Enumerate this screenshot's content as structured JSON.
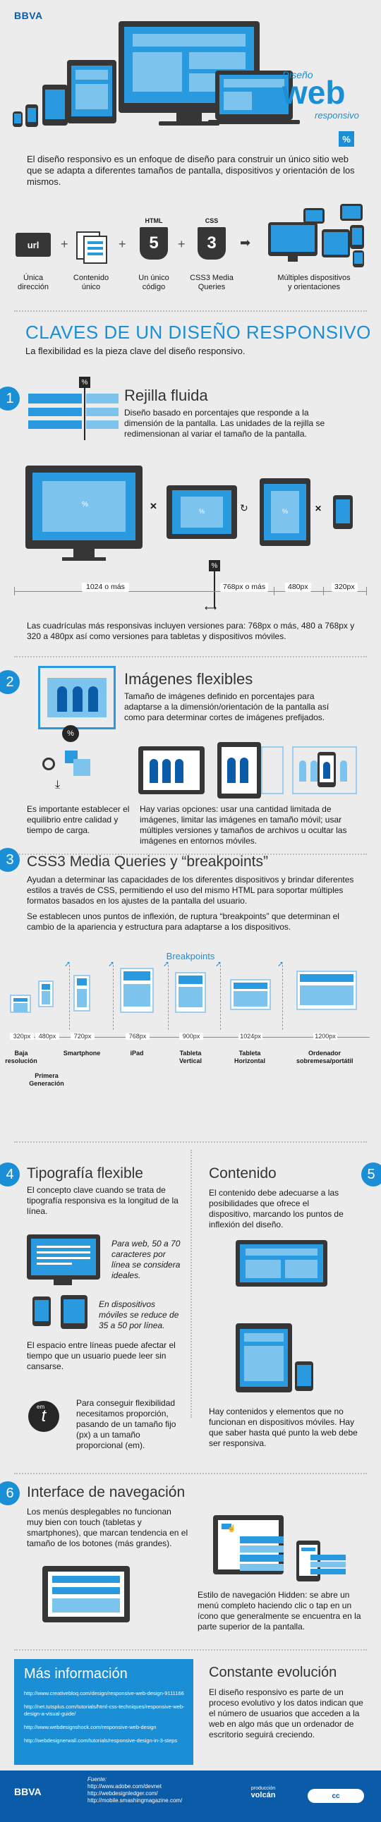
{
  "header": {
    "brand": "BBVA",
    "title_top": "Diseño",
    "title_main": "web",
    "title_sub": "responsivo",
    "percent": "%"
  },
  "intro": {
    "text": "El diseño responsivo es un enfoque de diseño para construir un único sitio web que se adapta a diferentes tamaños de pantalla, dispositivos y orientación de los mismos."
  },
  "equation": {
    "items": [
      {
        "icon": "url",
        "label": "Única\ndirección"
      },
      {
        "label": "Contenido\núnico"
      },
      {
        "top": "HTML",
        "glyph": "5",
        "label": "Un único\ncódigo"
      },
      {
        "top": "CSS",
        "glyph": "3",
        "label": "CSS3 Media\nQueries"
      },
      {
        "label": "Múltiples dispositivos\ny orientaciones"
      }
    ],
    "plus": "+",
    "arrow": "➡"
  },
  "claves": {
    "title": "CLAVES DE UN DISEÑO RESPONSIVO",
    "subtitle": "La flexibilidad es la pieza clave del diseño responsivo."
  },
  "s1": {
    "number": "1",
    "title": "Rejilla fluida",
    "text": "Diseño basado en porcentajes que responde a la dimensión de la pantalla. Las unidades de la rejilla se redimensionan al variar el tamaño de la pantalla.",
    "pct": "%",
    "scale": {
      "a": "1024 o más",
      "b": "768px o más",
      "c": "480px",
      "d": "320px"
    },
    "note": "Las cuadrículas más responsivas incluyen versiones para: 768px o más, 480 a 768px y 320 a 480px así como versiones para tabletas y dispositivos móviles."
  },
  "s2": {
    "number": "2",
    "title": "Imágenes flexibles",
    "text": "Tamaño de imágenes definido en porcentajes para adaptarse a la dimensión/orientación de la pantalla así como para determinar cortes de imágenes prefijados.",
    "left_note": "Es importante establecer el equilibrio entre calidad y tiempo de carga.",
    "right_note": "Hay varias opciones: usar una cantidad limitada de imágenes, limitar las imágenes en tamaño móvil; usar múltiples versiones y tamaños de archivos u ocultar las imágenes en entornos móviles.",
    "pct": "%"
  },
  "s3": {
    "number": "3",
    "title": "CSS3 Media Queries y “breakpoints”",
    "p1": "Ayudan a determinar las capacidades de los diferentes dispositivos y brindar diferentes estilos a través de CSS, permitiendo el uso del mismo HTML para soportar múltiples formatos basados en los ajustes de la pantalla del usuario.",
    "p2": "Se establecen unos puntos de inflexión, de ruptura  “breakpoints” que determinan el cambio de la apariencia y estructura para adaptarse a los dispositivos.",
    "breakpoints_title": "Breakpoints",
    "bps": [
      {
        "px": "320px",
        "label": "Baja\nresolución"
      },
      {
        "px": "480px",
        "label": "Primera\nGeneración"
      },
      {
        "px": "720px",
        "label": "Smartphone"
      },
      {
        "px": "768px",
        "label": "iPad"
      },
      {
        "px": "900px",
        "label": "Tableta\nVertical"
      },
      {
        "px": "1024px",
        "label": "Tableta\nHorizontal"
      },
      {
        "px": "1200px",
        "label": "Ordenador\nsobremesa/portátil"
      }
    ]
  },
  "s4": {
    "number": "4",
    "title": "Tipografía flexible",
    "p1": "El concepto clave cuando se trata de tipografía responsiva es la longitud de la línea.",
    "web_note": "Para web, 50 a 70 caracteres por línea se considera ideales.",
    "mobile_note": "En dispositivos móviles se reduce de 35 a 50 por línea.",
    "p2": "El espacio entre líneas puede afectar el tiempo que un usuario puede leer sin cansarse.",
    "em_badge": "em",
    "t_badge": "t",
    "p3": "Para conseguir flexibilidad necesitamos proporción, pasando de un tamaño fijo (px) a un tamaño proporcional (em)."
  },
  "s5": {
    "number": "5",
    "title": "Contenido",
    "p1": "El contenido debe adecuarse a las posibilidades que ofrece el dispositivo, marcando los puntos de inflexión del diseño.",
    "p2": "Hay contenidos y elementos que no funcionan en dispositivos móviles. Hay que saber hasta qué punto la web debe ser responsiva."
  },
  "s6": {
    "number": "6",
    "title": "Interface de navegación",
    "p1": "Los menús desplegables no funcionan muy bien con touch (tabletas y smartphones), que marcan tendencia en el tamaño de los botones (más grandes).",
    "p2": "Estilo de navegación Hidden: se abre un menú completo haciendo clic o tap en un ícono que generalmente se encuentra en la parte superior de la pantalla."
  },
  "more": {
    "title": "Más información",
    "links": [
      "http://www.creativebloq.com/design/responsive-web-design-9111166",
      "http://net.tutsplus.com/tutorials/html-css-techniques/responsive-web-design-a-visual-guide/",
      "http://www.webdesignshock.com/responsive-web-design",
      "http://webdesignerwall.com/tutorials/responsive-design-in-3-steps"
    ]
  },
  "evolution": {
    "title": "Constante evolución",
    "text": "El diseño responsivo es parte de un proceso evolutivo y los datos indican que el número de usuarios que acceden a la web en algo más que un ordenador de escritorio seguirá creciendo."
  },
  "footer": {
    "brand": "BBVA",
    "source_label": "Fuente:",
    "sources": [
      "http://www.adobe.com/devnet",
      "http://webdesignledger.com/",
      "http://mobile.smashingmagazine.com/"
    ],
    "producer_top": "producción",
    "producer": "volcán",
    "license": "cc"
  },
  "colors": {
    "accent": "#1b8fd6",
    "navy": "#0a5ba8",
    "device": "#363636",
    "background": "#ececec"
  }
}
